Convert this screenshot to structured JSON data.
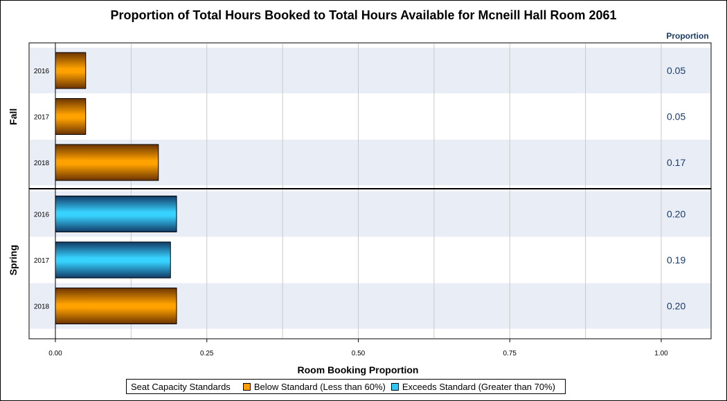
{
  "chart_data": {
    "type": "bar",
    "orientation": "horizontal",
    "title": "Proportion of Total Hours Booked to Total Hours Available for Mcneill Hall Room 2061",
    "xlabel": "Room Booking Proportion",
    "value_column_header": "Proportion",
    "xlim": [
      0,
      1.0
    ],
    "xticks": [
      "0.00",
      "0.25",
      "0.50",
      "0.75",
      "1.00"
    ],
    "grid": true,
    "groups": [
      {
        "name": "Fall",
        "rows": [
          {
            "category": "2016",
            "value": 0.05,
            "label": "0.05",
            "standard": "below"
          },
          {
            "category": "2017",
            "value": 0.05,
            "label": "0.05",
            "standard": "below"
          },
          {
            "category": "2018",
            "value": 0.17,
            "label": "0.17",
            "standard": "below"
          }
        ]
      },
      {
        "name": "Spring",
        "rows": [
          {
            "category": "2016",
            "value": 0.2,
            "label": "0.20",
            "standard": "exceeds"
          },
          {
            "category": "2017",
            "value": 0.19,
            "label": "0.19",
            "standard": "exceeds"
          },
          {
            "category": "2018",
            "value": 0.2,
            "label": "0.20",
            "standard": "below"
          }
        ]
      }
    ],
    "legend": {
      "placement": "bottom",
      "title": "Seat Capacity Standards",
      "items": [
        {
          "key": "below",
          "label": "Below Standard (Less than 60%)",
          "color": "#ff9e00"
        },
        {
          "key": "exceeds",
          "label": "Exceeds Standard (Greater than 70%)",
          "color": "#2fc7f5"
        }
      ]
    }
  }
}
